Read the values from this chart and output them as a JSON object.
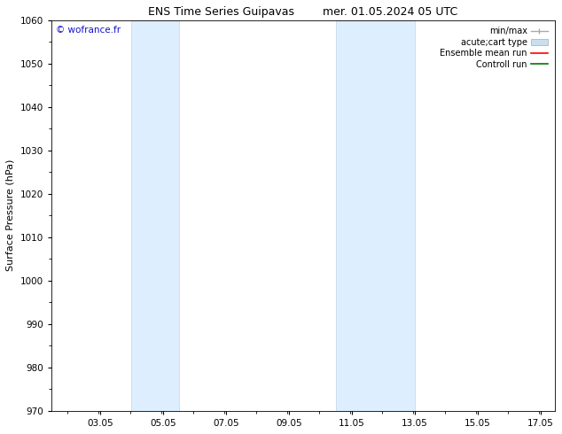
{
  "title": "ENS Time Series Guipavas        mer. 01.05.2024 05 UTC",
  "ylabel": "Surface Pressure (hPa)",
  "ylim": [
    970,
    1060
  ],
  "yticks": [
    970,
    980,
    990,
    1000,
    1010,
    1020,
    1030,
    1040,
    1050,
    1060
  ],
  "xlim": [
    1.5,
    17.5
  ],
  "xticks": [
    3.05,
    5.05,
    7.05,
    9.05,
    11.05,
    13.05,
    15.05,
    17.05
  ],
  "xticklabels": [
    "03.05",
    "05.05",
    "07.05",
    "09.05",
    "11.05",
    "13.05",
    "15.05",
    "17.05"
  ],
  "shaded_bands": [
    {
      "x_start": 4.05,
      "x_end": 5.55
    },
    {
      "x_start": 10.55,
      "x_end": 13.05
    }
  ],
  "shaded_color": "#ddeeff",
  "shaded_edge_color": "#c0d4e8",
  "background_color": "#ffffff",
  "plot_bg_color": "#ffffff",
  "watermark_text": "© wofrance.fr",
  "watermark_color": "#1111cc",
  "watermark_fontsize": 7.5,
  "title_fontsize": 9,
  "legend_label_fontsize": 7,
  "legend_entries": [
    {
      "label": "min/max",
      "color": "#aaaaaa"
    },
    {
      "label": "acute;cart type",
      "color": "#c8dff0"
    },
    {
      "label": "Ensemble mean run",
      "color": "#ff0000"
    },
    {
      "label": "Controll run",
      "color": "#007700"
    }
  ],
  "ylabel_fontsize": 8,
  "tick_labelsize": 7.5
}
